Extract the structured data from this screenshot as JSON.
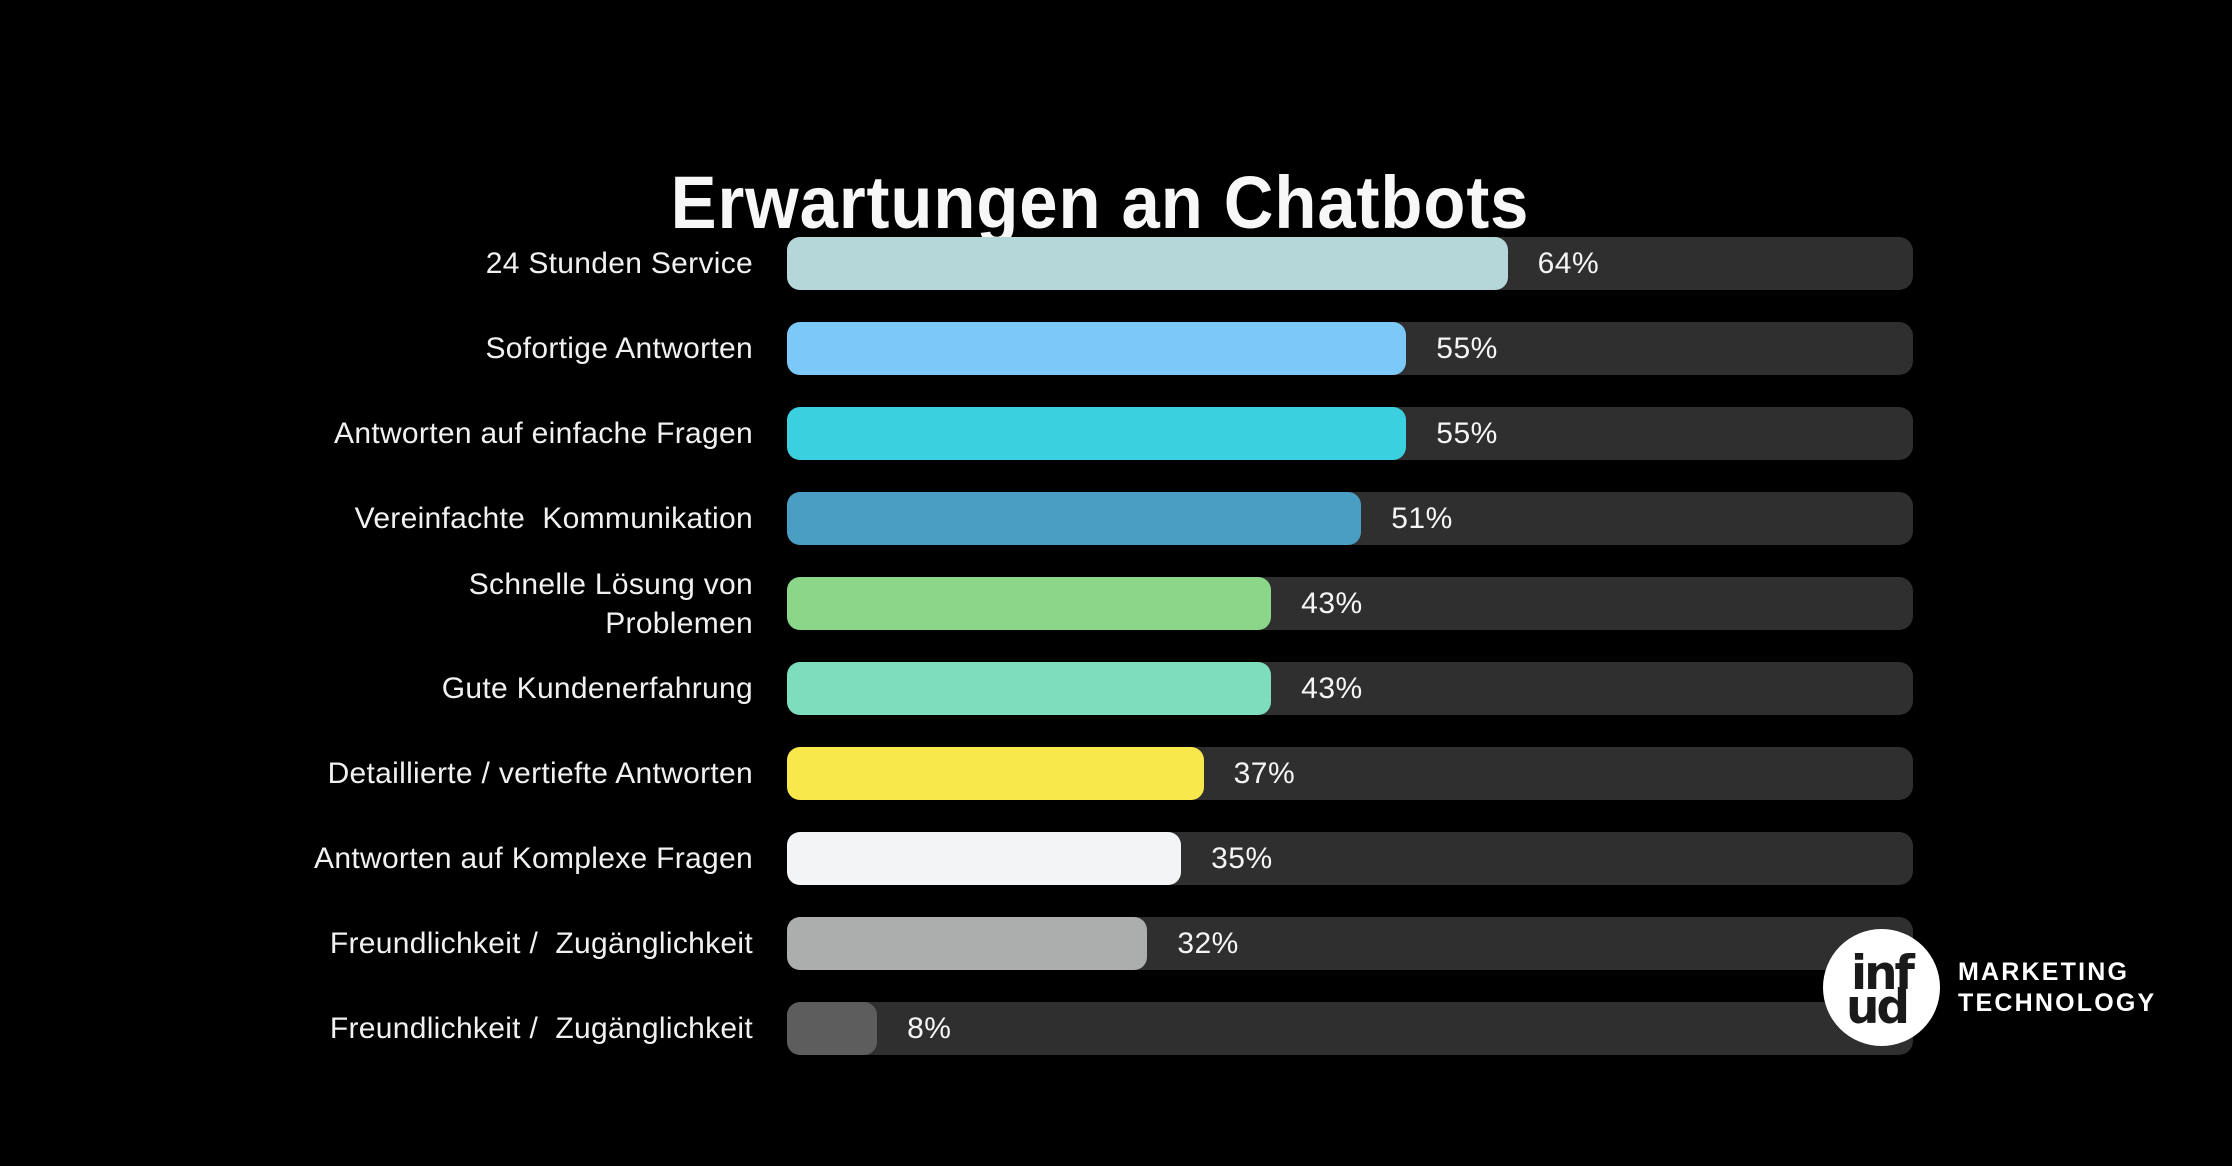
{
  "chart_data": {
    "type": "bar",
    "orientation": "horizontal",
    "title": "Erwartungen an Chatbots",
    "categories": [
      "24 Stunden Service",
      "Sofortige Antworten",
      "Antworten auf einfache Fragen",
      "Vereinfachte  Kommunikation",
      "Schnelle Lösung von\nProblemen",
      "Gute Kundenerfahrung",
      "Detaillierte / vertiefte Antworten",
      "Antworten auf Komplexe Fragen",
      "Freundlichkeit /  Zugänglichkeit",
      "Freundlichkeit /  Zugänglichkeit"
    ],
    "values": [
      64,
      55,
      55,
      51,
      43,
      43,
      37,
      35,
      32,
      8
    ],
    "value_suffix": "%",
    "xlim": [
      0,
      100
    ],
    "grid": false,
    "legend": "none",
    "bar_colors": [
      "#b6d7d9",
      "#7cc9f9",
      "#3bd0e0",
      "#4a9ec3",
      "#8cd689",
      "#7eddbc",
      "#f9e84b",
      "#f2f4f6",
      "#abaeac",
      "#5c5d5c"
    ],
    "track_color": "#2e2f2e",
    "background_color": "#000000",
    "text_color": "#f1f1f1"
  },
  "brand": {
    "monogram_top": "inf",
    "monogram_bottom": "ud",
    "line1": "MARKETING",
    "line2": "TECHNOLOGY"
  }
}
